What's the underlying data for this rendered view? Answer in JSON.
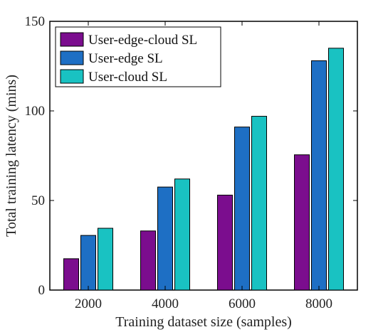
{
  "chart_data": {
    "type": "bar",
    "categories": [
      "2000",
      "4000",
      "6000",
      "8000"
    ],
    "series": [
      {
        "name": "User-edge-cloud SL",
        "color": "#7B0D8E",
        "values": [
          17.5,
          33,
          53,
          75.5
        ]
      },
      {
        "name": "User-edge SL",
        "color": "#1E6FC4",
        "values": [
          30.5,
          57.5,
          91,
          128
        ]
      },
      {
        "name": "User-cloud SL",
        "color": "#19C2C2",
        "values": [
          34.5,
          62,
          97,
          135
        ]
      }
    ],
    "xlabel": "Training dataset size (samples)",
    "ylabel": "Total training latency (mins)",
    "ylim": [
      0,
      150
    ],
    "yticks": [
      "0",
      "50",
      "100",
      "150"
    ],
    "ytick_values": [
      0,
      50,
      100,
      150
    ],
    "grid": false,
    "legend_position": "top-left"
  }
}
